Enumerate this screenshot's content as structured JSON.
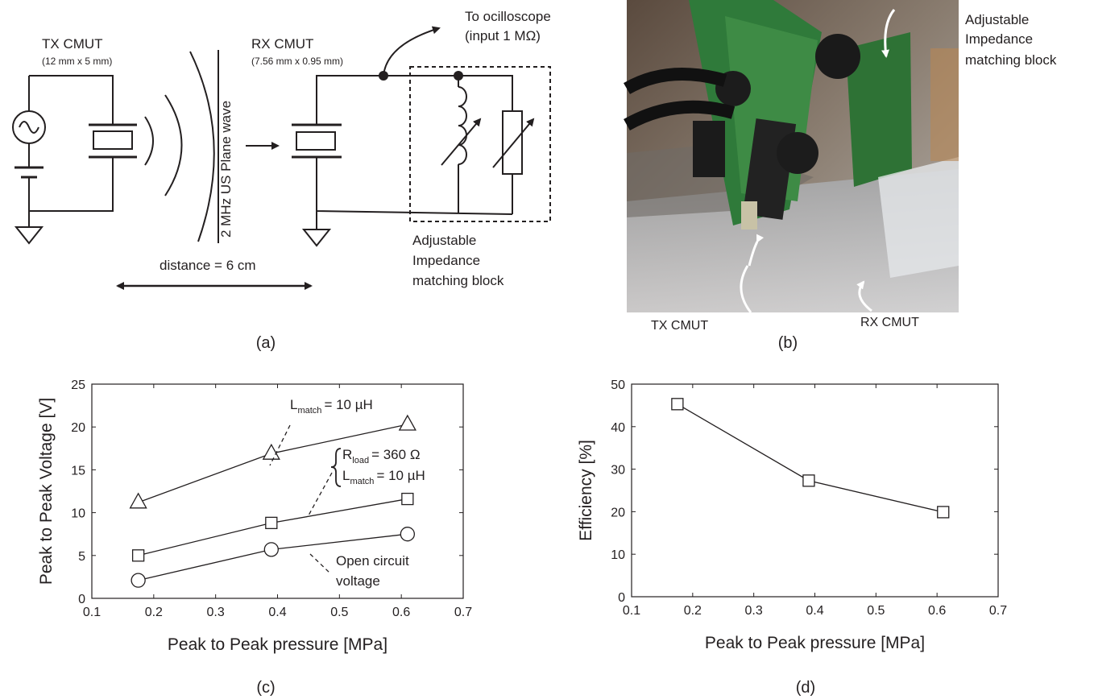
{
  "panel_a": {
    "tx_label": "TX CMUT",
    "tx_size": "(12 mm x 5 mm)",
    "rx_label": "RX CMUT",
    "rx_size": "(7.56 mm x  0.95 mm)",
    "scope_line1": "To ocilloscope",
    "scope_line2": "(input 1 MΩ)",
    "wave_label": "2 MHz US  Plane wave",
    "distance_label": "distance  = 6 cm",
    "block_line1": "Adjustable",
    "block_line2": "Impedance",
    "block_line3": "matching block",
    "caption": "(a)"
  },
  "panel_b": {
    "block_line1": "Adjustable",
    "block_line2": "Impedance",
    "block_line3": "matching block",
    "tx_label": "TX CMUT",
    "rx_label": "RX CMUT",
    "caption": "(b)"
  },
  "panel_c": {
    "caption": "(c)",
    "ann_triangle_L": "L",
    "ann_triangle_sub": "match",
    "ann_triangle_val": "= 10 µH",
    "ann_square_R": "R",
    "ann_square_R_sub": "load",
    "ann_square_R_val": "= 360 Ω",
    "ann_square_L": "L",
    "ann_square_L_sub": "match",
    "ann_square_L_val": "= 10 µH",
    "ann_circle_line1": "Open circuit",
    "ann_circle_line2": "voltage"
  },
  "panel_d": {
    "caption": "(d)"
  },
  "chart_data": [
    {
      "type": "line",
      "xlabel": "Peak to Peak pressure [MPa]",
      "ylabel": "Peak to Peak Voltage [V]",
      "xlim": [
        0.1,
        0.7
      ],
      "ylim": [
        0,
        25
      ],
      "xticks": [
        "0.1",
        "0.2",
        "0.3",
        "0.4",
        "0.5",
        "0.6",
        "0.7"
      ],
      "yticks": [
        "0",
        "5",
        "10",
        "15",
        "20",
        "25"
      ],
      "grid": false,
      "series": [
        {
          "marker": "triangle",
          "x": [
            0.175,
            0.39,
            0.61
          ],
          "y": [
            11.2,
            16.9,
            20.3
          ]
        },
        {
          "marker": "square",
          "x": [
            0.175,
            0.39,
            0.61
          ],
          "y": [
            5.0,
            8.8,
            11.6
          ]
        },
        {
          "marker": "circle",
          "x": [
            0.175,
            0.39,
            0.61
          ],
          "y": [
            2.1,
            5.7,
            7.5
          ]
        }
      ]
    },
    {
      "type": "line",
      "xlabel": "Peak to Peak pressure [MPa]",
      "ylabel": "Efficiency [%]",
      "xlim": [
        0.1,
        0.7
      ],
      "ylim": [
        0,
        50
      ],
      "xticks": [
        "0.1",
        "0.2",
        "0.3",
        "0.4",
        "0.5",
        "0.6",
        "0.7"
      ],
      "yticks": [
        "0",
        "10",
        "20",
        "30",
        "40",
        "50"
      ],
      "grid": false,
      "series": [
        {
          "marker": "square",
          "x": [
            0.175,
            0.39,
            0.61
          ],
          "y": [
            45.3,
            27.3,
            19.9
          ]
        }
      ]
    }
  ]
}
